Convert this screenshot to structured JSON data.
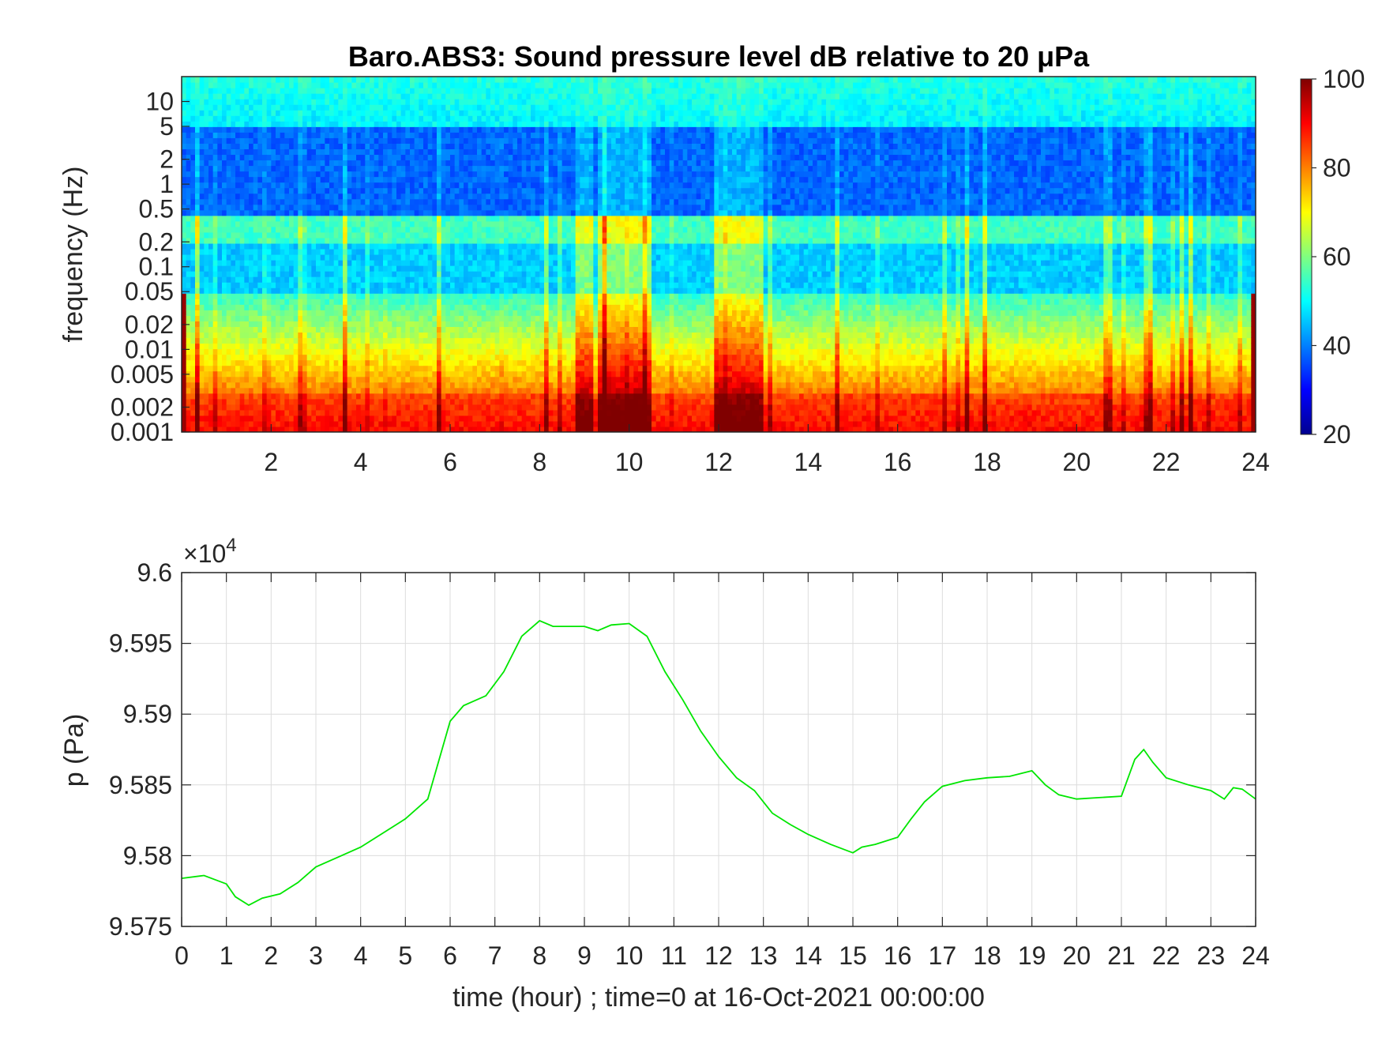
{
  "chart_data": [
    {
      "type": "heatmap",
      "title": "Baro.ABS3: Sound pressure level dB relative to 20 μPa",
      "xlabel": "",
      "ylabel": "frequency (Hz)",
      "xlim": [
        0,
        24
      ],
      "ylim": [
        0.001,
        20
      ],
      "yscale": "log",
      "x_ticks": [
        2,
        4,
        6,
        8,
        10,
        12,
        14,
        16,
        18,
        20,
        22,
        24
      ],
      "x_tick_labels": [
        "2",
        "4",
        "6",
        "8",
        "10",
        "12",
        "14",
        "16",
        "18",
        "20",
        "22",
        "24"
      ],
      "y_ticks": [
        0.001,
        0.002,
        0.005,
        0.01,
        0.02,
        0.05,
        0.1,
        0.2,
        0.5,
        1,
        2,
        5,
        10
      ],
      "y_tick_labels": [
        "0.001",
        "0.002",
        "0.005",
        "0.01",
        "0.02",
        "0.05",
        "0.1",
        "0.2",
        "0.5",
        "1",
        "2",
        "5",
        "10"
      ],
      "colorbar": {
        "range": [
          20,
          100
        ],
        "ticks": [
          20,
          40,
          60,
          80,
          100
        ],
        "tick_labels": [
          "20",
          "40",
          "60",
          "80",
          "100"
        ],
        "colormap": "jet"
      },
      "grid": false,
      "description_bands": [
        {
          "freq_range": [
            0.001,
            0.003
          ],
          "level_db": 90
        },
        {
          "freq_range": [
            0.003,
            0.05
          ],
          "level_db": 68
        },
        {
          "freq_range": [
            0.05,
            0.2
          ],
          "level_db": 45
        },
        {
          "freq_range": [
            0.2,
            0.4
          ],
          "level_db": 55
        },
        {
          "freq_range": [
            0.4,
            5
          ],
          "level_db": 38
        },
        {
          "freq_range": [
            5,
            20
          ],
          "level_db": 50
        }
      ],
      "active_periods_hour": [
        [
          9.3,
          10.5
        ],
        [
          12.0,
          13.0
        ],
        [
          8.8,
          9.2
        ]
      ]
    },
    {
      "type": "line",
      "title": "",
      "xlabel": "time (hour) ; time=0 at 16-Oct-2021 00:00:00",
      "ylabel": "p (Pa)",
      "xlim": [
        0,
        24
      ],
      "ylim": [
        95750,
        96000
      ],
      "y_multiplier_label": "×10",
      "y_multiplier_exponent": "4",
      "x_ticks": [
        0,
        1,
        2,
        3,
        4,
        5,
        6,
        7,
        8,
        9,
        10,
        11,
        12,
        13,
        14,
        15,
        16,
        17,
        18,
        19,
        20,
        21,
        22,
        23,
        24
      ],
      "x_tick_labels": [
        "0",
        "1",
        "2",
        "3",
        "4",
        "5",
        "6",
        "7",
        "8",
        "9",
        "10",
        "11",
        "12",
        "13",
        "14",
        "15",
        "16",
        "17",
        "18",
        "19",
        "20",
        "21",
        "22",
        "23",
        "24"
      ],
      "y_ticks": [
        95750,
        95800,
        95850,
        95900,
        95950,
        96000
      ],
      "y_tick_labels": [
        "9.575",
        "9.58",
        "9.585",
        "9.59",
        "9.595",
        "9.6"
      ],
      "grid": true,
      "series": [
        {
          "color": "#00e600",
          "x": [
            0,
            0.5,
            1.0,
            1.2,
            1.5,
            1.8,
            2.2,
            2.6,
            3.0,
            3.5,
            4.0,
            4.5,
            5.0,
            5.5,
            6.0,
            6.3,
            6.8,
            7.2,
            7.6,
            8.0,
            8.3,
            8.7,
            9.0,
            9.3,
            9.6,
            10.0,
            10.4,
            10.8,
            11.2,
            11.6,
            12.0,
            12.4,
            12.8,
            13.2,
            13.6,
            14.0,
            14.5,
            15.0,
            15.2,
            15.5,
            16.0,
            16.3,
            16.6,
            17.0,
            17.5,
            18.0,
            18.5,
            19.0,
            19.3,
            19.6,
            20.0,
            20.5,
            21.0,
            21.3,
            21.5,
            21.7,
            22.0,
            22.5,
            23.0,
            23.3,
            23.5,
            23.7,
            24.0
          ],
          "y": [
            95784,
            95786,
            95780,
            95771,
            95765,
            95770,
            95773,
            95781,
            95792,
            95799,
            95806,
            95816,
            95826,
            95840,
            95895,
            95906,
            95913,
            95930,
            95955,
            95966,
            95962,
            95962,
            95962,
            95959,
            95963,
            95964,
            95955,
            95930,
            95910,
            95888,
            95870,
            95855,
            95846,
            95830,
            95822,
            95815,
            95808,
            95802,
            95806,
            95808,
            95813,
            95826,
            95838,
            95849,
            95853,
            95855,
            95856,
            95860,
            95850,
            95843,
            95840,
            95841,
            95842,
            95868,
            95875,
            95866,
            95855,
            95850,
            95846,
            95840,
            95848,
            95847,
            95840
          ]
        }
      ]
    }
  ]
}
